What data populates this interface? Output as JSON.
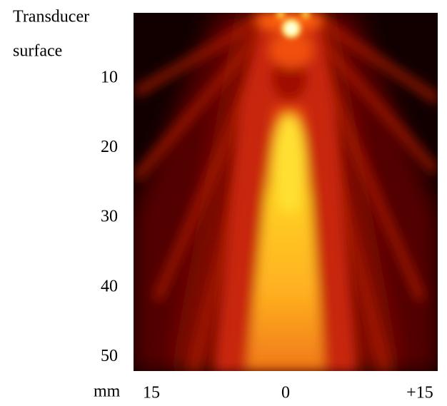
{
  "chart_data": {
    "type": "heatmap",
    "ylabel_lines": [
      "Transducer",
      "surface"
    ],
    "xlabel": "mm",
    "xlim": [
      -17,
      17
    ],
    "xticks": [
      {
        "value": -15,
        "label": "15"
      },
      0,
      {
        "value": 15,
        "label": "+15"
      }
    ],
    "ylim": [
      0.6,
      52
    ],
    "yticks": [
      10,
      20,
      30,
      40,
      50
    ],
    "y_inverted": true
  }
}
